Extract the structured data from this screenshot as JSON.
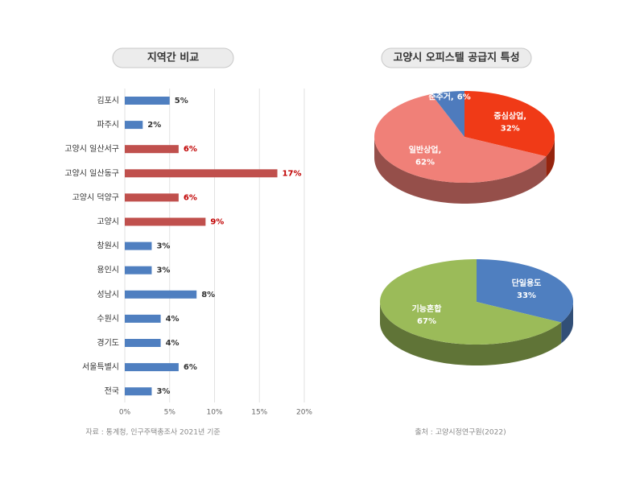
{
  "chart_data": [
    {
      "type": "hbar",
      "title": "지역간 비교",
      "categories": [
        "김포시",
        "파주시",
        "고양시 일산서구",
        "고양시 일산동구",
        "고양시 덕양구",
        "고양시",
        "창원시",
        "용인시",
        "성남시",
        "수원시",
        "경기도",
        "서울특별시",
        "전국"
      ],
      "values": [
        5,
        2,
        6,
        17,
        6,
        9,
        3,
        3,
        8,
        4,
        4,
        6,
        3
      ],
      "value_labels": [
        "5%",
        "2%",
        "6%",
        "17%",
        "6%",
        "9%",
        "3%",
        "3%",
        "8%",
        "4%",
        "4%",
        "6%",
        "3%"
      ],
      "colors": [
        "#4f7fc0",
        "#4f7fc0",
        "#c0504d",
        "#c0504d",
        "#c0504d",
        "#c0504d",
        "#4f7fc0",
        "#4f7fc0",
        "#4f7fc0",
        "#4f7fc0",
        "#4f7fc0",
        "#4f7fc0",
        "#4f7fc0"
      ],
      "value_label_colors": [
        "#333333",
        "#333333",
        "#c00000",
        "#c00000",
        "#c00000",
        "#c00000",
        "#333333",
        "#333333",
        "#333333",
        "#333333",
        "#333333",
        "#333333",
        "#333333"
      ],
      "xlim": [
        0,
        20
      ],
      "xticks": [
        {
          "value": 0,
          "label": "0%"
        },
        {
          "value": 5,
          "label": "5%"
        },
        {
          "value": 10,
          "label": "10%"
        },
        {
          "value": 15,
          "label": "15%"
        },
        {
          "value": 20,
          "label": "20%"
        }
      ],
      "grid": true,
      "note": "자료 : 통계청, 인구주택총조사 2021년 기준"
    },
    {
      "type": "pie",
      "title": "고양시 오피스텔 공급지 특성",
      "categories": [
        "중심상업,",
        "일반상업,",
        "준주거,"
      ],
      "values": [
        32,
        62,
        6
      ],
      "value_labels": [
        "32%",
        "62%",
        "6%"
      ],
      "colors": [
        "#f03a17",
        "#f08078",
        "#4e7bbd"
      ]
    },
    {
      "type": "pie",
      "categories": [
        "단일용도",
        "기능혼합"
      ],
      "values": [
        33,
        67
      ],
      "value_labels": [
        "33%",
        "67%"
      ],
      "colors": [
        "#4f7fc0",
        "#9bbb59"
      ],
      "note": "출처 : 고양시정연구원(2022)"
    }
  ]
}
